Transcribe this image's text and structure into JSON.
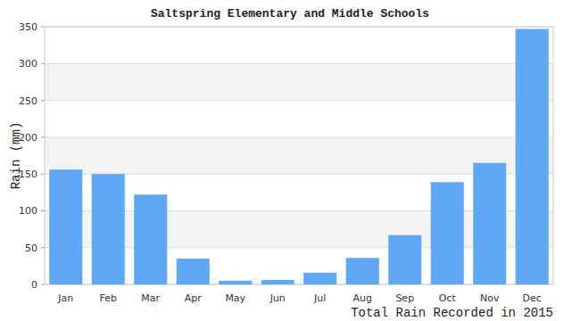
{
  "chart_data": {
    "type": "bar",
    "title": "Saltspring Elementary and Middle Schools",
    "x_label": "Total Rain Recorded in 2015",
    "y_label": "Rain (mm)",
    "categories": [
      "Jan",
      "Feb",
      "Mar",
      "Apr",
      "May",
      "Jun",
      "Jul",
      "Aug",
      "Sep",
      "Oct",
      "Nov",
      "Dec"
    ],
    "values": [
      156,
      150,
      122,
      35,
      5,
      6,
      16,
      36,
      67,
      139,
      165,
      347
    ],
    "color": "#5ea8f5",
    "ylim": [
      0,
      350
    ],
    "yticks": [
      0,
      50,
      100,
      150,
      200,
      250,
      300,
      350
    ],
    "grid": true
  }
}
